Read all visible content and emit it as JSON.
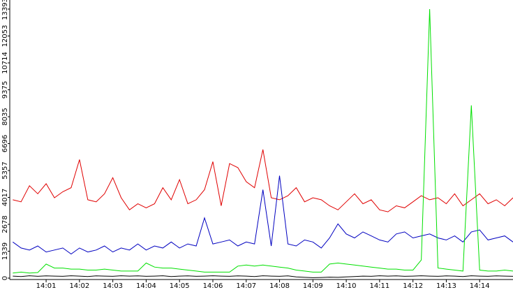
{
  "chart_data": {
    "type": "line",
    "x": [
      840,
      840.25,
      840.5,
      840.75,
      841,
      841.25,
      841.5,
      841.75,
      842,
      842.25,
      842.5,
      842.75,
      843,
      843.25,
      843.5,
      843.75,
      844,
      844.25,
      844.5,
      844.75,
      845,
      845.25,
      845.5,
      845.75,
      846,
      846.25,
      846.5,
      846.75,
      847,
      847.25,
      847.5,
      847.75,
      848,
      848.25,
      848.5,
      848.75,
      849,
      849.25,
      849.5,
      849.75,
      850,
      850.25,
      850.5,
      850.75,
      851,
      851.25,
      851.5,
      851.75,
      852,
      852.25,
      852.5,
      852.75,
      853,
      853.25,
      853.5,
      853.75,
      854,
      854.25,
      854.5,
      854.75,
      855
    ],
    "series": [
      {
        "color": "#e00000",
        "values": [
          3900,
          3800,
          4600,
          4200,
          4700,
          4000,
          4300,
          4500,
          5900,
          3900,
          3800,
          4200,
          5000,
          4000,
          3400,
          3700,
          3500,
          3700,
          4500,
          3900,
          4900,
          3700,
          3900,
          4400,
          5800,
          3600,
          5700,
          5500,
          4800,
          4500,
          6400,
          4000,
          3900,
          4100,
          4500,
          3800,
          4000,
          3900,
          3600,
          3400,
          3800,
          4200,
          3700,
          3900,
          3400,
          3300,
          3600,
          3500,
          3800,
          4100,
          3900,
          4000,
          3700,
          4200,
          3600,
          3900,
          4200,
          3700,
          3900,
          3600,
          4000
        ]
      },
      {
        "color": "#0000c0",
        "values": [
          1800,
          1500,
          1400,
          1600,
          1300,
          1400,
          1500,
          1200,
          1500,
          1300,
          1400,
          1600,
          1300,
          1500,
          1400,
          1700,
          1400,
          1600,
          1500,
          1800,
          1500,
          1700,
          1600,
          3000,
          1700,
          1800,
          1900,
          1600,
          1800,
          1700,
          4400,
          1600,
          5100,
          1700,
          1600,
          1900,
          1800,
          1500,
          2000,
          2700,
          2200,
          2000,
          2300,
          2100,
          1900,
          1800,
          2200,
          2300,
          2000,
          2100,
          2200,
          2000,
          1900,
          2100,
          1800,
          2300,
          2400,
          1900,
          2000,
          2100,
          1800
        ]
      },
      {
        "color": "#00e000",
        "values": [
          250,
          300,
          250,
          280,
          700,
          500,
          500,
          450,
          450,
          400,
          400,
          450,
          400,
          350,
          350,
          350,
          750,
          550,
          500,
          500,
          450,
          400,
          350,
          300,
          300,
          300,
          300,
          600,
          650,
          600,
          650,
          600,
          550,
          500,
          400,
          350,
          300,
          300,
          700,
          750,
          700,
          650,
          600,
          550,
          500,
          450,
          450,
          400,
          400,
          900,
          13393,
          500,
          450,
          400,
          350,
          8600,
          400,
          350,
          350,
          400,
          350
        ]
      },
      {
        "color": "#000000",
        "values": [
          100,
          80,
          120,
          90,
          110,
          100,
          90,
          120,
          100,
          80,
          110,
          100,
          90,
          120,
          100,
          110,
          90,
          100,
          120,
          80,
          100,
          110,
          90,
          100,
          120,
          100,
          90,
          110,
          100,
          80,
          120,
          100,
          90,
          110,
          60,
          40,
          20,
          30,
          50,
          40,
          60,
          80,
          100,
          90,
          120,
          100,
          110,
          90,
          100,
          120,
          100,
          90,
          110,
          100,
          80,
          120,
          100,
          90,
          110,
          100,
          90
        ]
      }
    ],
    "xlim": [
      839.91,
      855
    ],
    "xticks": [
      {
        "value": 841,
        "label": "14:01"
      },
      {
        "value": 842,
        "label": "14:02"
      },
      {
        "value": 843,
        "label": "14:03"
      },
      {
        "value": 844,
        "label": "14:04"
      },
      {
        "value": 845,
        "label": "14:05"
      },
      {
        "value": 846,
        "label": "14:06"
      },
      {
        "value": 847,
        "label": "14:07"
      },
      {
        "value": 848,
        "label": "14:08"
      },
      {
        "value": 849,
        "label": "14:09"
      },
      {
        "value": 850,
        "label": "14:10"
      },
      {
        "value": 851,
        "label": "14:11"
      },
      {
        "value": 852,
        "label": "14:12"
      },
      {
        "value": 853,
        "label": "14:13"
      },
      {
        "value": 854,
        "label": "14:14"
      }
    ],
    "ylim": [
      0,
      13393
    ],
    "yticks": [
      0,
      1339,
      2678,
      4017,
      5357,
      6696,
      8035,
      9375,
      10714,
      12053,
      13393
    ]
  }
}
